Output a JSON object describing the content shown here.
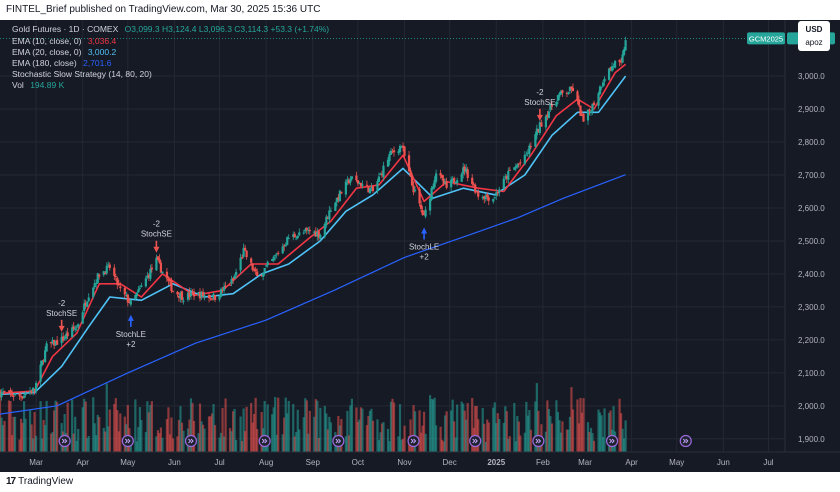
{
  "header": {
    "publisher": "FINTEL_Brief published on TradingView.com, Mar 30, 2025 15:36 UTC"
  },
  "legend": {
    "title": "Gold Futures · 1D · COMEX",
    "ohlc": "O3,099.3  H3,124.4  L3,096.3  C3,114.3  +53.3 (+1.74%)",
    "ema10_label": "EMA (10, close, 0)",
    "ema10_value": "3,036.4",
    "ema20_label": "EMA (20, close, 0)",
    "ema20_value": "3,000.2",
    "ema180_label": "EMA (180, close)",
    "ema180_value": "2,701.6",
    "strategy_label": "Stochastic Slow Strategy (14, 80, 20)",
    "vol_label": "Vol",
    "vol_value": "194.89 K"
  },
  "currency": {
    "code": "USD",
    "sub": "apoz"
  },
  "footer": {
    "brand": "TradingView",
    "brand_mark": "17"
  },
  "colors": {
    "up": "#26a69a",
    "down": "#ef5350",
    "ema10": "#f23645",
    "ema20": "#4fc3f7",
    "ema180": "#2962ff",
    "grid": "#242833",
    "axis_text": "#b2b5be",
    "price_tag": "#26a69a"
  },
  "chart_data": {
    "type": "candlestick",
    "symbol": "GCM2025",
    "last_price": 3114.3,
    "last_price_label": "3,114.3",
    "symbol_label": "GCM2025",
    "y_range": [
      1860,
      3170
    ],
    "y_ticks": [
      "3,000.0",
      "2,900.0",
      "2,800.0",
      "2,700.0",
      "2,600.0",
      "2,500.0",
      "2,400.0",
      "2,300.0",
      "2,200.0",
      "2,100.0",
      "2,000.0",
      "1,900.0"
    ],
    "y_tick_values": [
      3000,
      2900,
      2800,
      2700,
      2600,
      2500,
      2400,
      2300,
      2200,
      2100,
      2000,
      1900
    ],
    "x_ticks": [
      "Mar",
      "Apr",
      "May",
      "Jun",
      "Jul",
      "Aug",
      "Sep",
      "Oct",
      "Nov",
      "Dec",
      "2025",
      "Feb",
      "Mar",
      "Apr",
      "May",
      "Jun",
      "Jul"
    ],
    "x_tick_dates": [
      "2024-03-01",
      "2024-04-01",
      "2024-05-01",
      "2024-06-01",
      "2024-07-01",
      "2024-08-01",
      "2024-09-01",
      "2024-10-01",
      "2024-11-01",
      "2024-12-01",
      "2025-01-01",
      "2025-02-01",
      "2025-03-01",
      "2025-04-01",
      "2025-05-01",
      "2025-06-01",
      "2025-07-01"
    ],
    "x_range": [
      "2024-02-06",
      "2025-07-12"
    ],
    "close_path": [
      [
        "2024-02-06",
        2040
      ],
      [
        "2024-02-20",
        2030
      ],
      [
        "2024-02-29",
        2050
      ],
      [
        "2024-03-08",
        2180
      ],
      [
        "2024-03-18",
        2200
      ],
      [
        "2024-03-28",
        2240
      ],
      [
        "2024-04-05",
        2340
      ],
      [
        "2024-04-12",
        2400
      ],
      [
        "2024-04-19",
        2420
      ],
      [
        "2024-04-26",
        2350
      ],
      [
        "2024-05-03",
        2310
      ],
      [
        "2024-05-10",
        2360
      ],
      [
        "2024-05-20",
        2440
      ],
      [
        "2024-05-31",
        2350
      ],
      [
        "2024-06-07",
        2330
      ],
      [
        "2024-06-14",
        2340
      ],
      [
        "2024-06-28",
        2330
      ],
      [
        "2024-07-10",
        2380
      ],
      [
        "2024-07-17",
        2470
      ],
      [
        "2024-07-26",
        2390
      ],
      [
        "2024-08-05",
        2440
      ],
      [
        "2024-08-16",
        2510
      ],
      [
        "2024-08-30",
        2530
      ],
      [
        "2024-09-06",
        2520
      ],
      [
        "2024-09-13",
        2600
      ],
      [
        "2024-09-26",
        2690
      ],
      [
        "2024-10-04",
        2670
      ],
      [
        "2024-10-11",
        2650
      ],
      [
        "2024-10-22",
        2760
      ],
      [
        "2024-10-30",
        2790
      ],
      [
        "2024-11-06",
        2670
      ],
      [
        "2024-11-14",
        2570
      ],
      [
        "2024-11-22",
        2710
      ],
      [
        "2024-11-29",
        2660
      ],
      [
        "2024-12-11",
        2720
      ],
      [
        "2024-12-20",
        2640
      ],
      [
        "2024-12-30",
        2630
      ],
      [
        "2025-01-10",
        2710
      ],
      [
        "2025-01-20",
        2750
      ],
      [
        "2025-01-30",
        2850
      ],
      [
        "2025-02-11",
        2940
      ],
      [
        "2025-02-21",
        2960
      ],
      [
        "2025-02-28",
        2860
      ],
      [
        "2025-03-07",
        2920
      ],
      [
        "2025-03-14",
        3000
      ],
      [
        "2025-03-21",
        3040
      ],
      [
        "2025-03-25",
        3030
      ],
      [
        "2025-03-28",
        3114
      ]
    ],
    "ema10_series": [
      [
        "2024-02-06",
        2038
      ],
      [
        "2024-02-29",
        2045
      ],
      [
        "2024-03-12",
        2150
      ],
      [
        "2024-03-28",
        2220
      ],
      [
        "2024-04-12",
        2370
      ],
      [
        "2024-04-26",
        2370
      ],
      [
        "2024-05-10",
        2330
      ],
      [
        "2024-05-24",
        2400
      ],
      [
        "2024-06-14",
        2335
      ],
      [
        "2024-07-03",
        2350
      ],
      [
        "2024-07-22",
        2430
      ],
      [
        "2024-08-09",
        2430
      ],
      [
        "2024-08-30",
        2510
      ],
      [
        "2024-09-13",
        2560
      ],
      [
        "2024-09-30",
        2660
      ],
      [
        "2024-10-15",
        2670
      ],
      [
        "2024-10-31",
        2760
      ],
      [
        "2024-11-14",
        2620
      ],
      [
        "2024-11-29",
        2680
      ],
      [
        "2024-12-20",
        2660
      ],
      [
        "2025-01-06",
        2650
      ],
      [
        "2025-01-24",
        2760
      ],
      [
        "2025-02-10",
        2880
      ],
      [
        "2025-02-24",
        2930
      ],
      [
        "2025-03-07",
        2900
      ],
      [
        "2025-03-21",
        3010
      ],
      [
        "2025-03-28",
        3036
      ]
    ],
    "ema20_series": [
      [
        "2024-02-06",
        2035
      ],
      [
        "2024-02-29",
        2040
      ],
      [
        "2024-03-18",
        2120
      ],
      [
        "2024-04-05",
        2240
      ],
      [
        "2024-04-19",
        2330
      ],
      [
        "2024-05-10",
        2320
      ],
      [
        "2024-05-31",
        2370
      ],
      [
        "2024-06-21",
        2330
      ],
      [
        "2024-07-10",
        2340
      ],
      [
        "2024-07-29",
        2400
      ],
      [
        "2024-08-16",
        2430
      ],
      [
        "2024-09-06",
        2500
      ],
      [
        "2024-09-23",
        2590
      ],
      [
        "2024-10-11",
        2640
      ],
      [
        "2024-10-31",
        2720
      ],
      [
        "2024-11-20",
        2630
      ],
      [
        "2024-12-10",
        2660
      ],
      [
        "2024-12-31",
        2640
      ],
      [
        "2025-01-20",
        2700
      ],
      [
        "2025-02-07",
        2820
      ],
      [
        "2025-02-24",
        2890
      ],
      [
        "2025-03-10",
        2890
      ],
      [
        "2025-03-28",
        3000
      ]
    ],
    "ema180_series": [
      [
        "2024-02-06",
        1975
      ],
      [
        "2024-03-15",
        2000
      ],
      [
        "2024-05-01",
        2100
      ],
      [
        "2024-06-15",
        2190
      ],
      [
        "2024-08-01",
        2260
      ],
      [
        "2024-09-15",
        2350
      ],
      [
        "2024-11-01",
        2450
      ],
      [
        "2024-12-15",
        2520
      ],
      [
        "2025-01-15",
        2570
      ],
      [
        "2025-02-15",
        2630
      ],
      [
        "2025-03-28",
        2701
      ]
    ],
    "signals": [
      {
        "type": "sell",
        "label": "StochSE",
        "qty": "-2",
        "date": "2024-03-18",
        "price": 2200
      },
      {
        "type": "sell",
        "label": "StochSE",
        "qty": "-2",
        "date": "2024-05-20",
        "price": 2440
      },
      {
        "type": "buy",
        "label": "StochLE",
        "qty": "+2",
        "date": "2024-05-03",
        "price": 2300
      },
      {
        "type": "buy",
        "label": "StochLE",
        "qty": "+2",
        "date": "2024-11-14",
        "price": 2565
      },
      {
        "type": "sell",
        "label": "StochSE",
        "qty": "-2",
        "date": "2025-01-30",
        "price": 2840
      }
    ],
    "volume_note": "Vol 194.89 K",
    "event_icon_dates": [
      "2024-03-20",
      "2024-05-01",
      "2024-06-12",
      "2024-07-31",
      "2024-09-18",
      "2024-11-07",
      "2024-12-18",
      "2025-01-29",
      "2025-03-19",
      "2025-05-07"
    ]
  }
}
